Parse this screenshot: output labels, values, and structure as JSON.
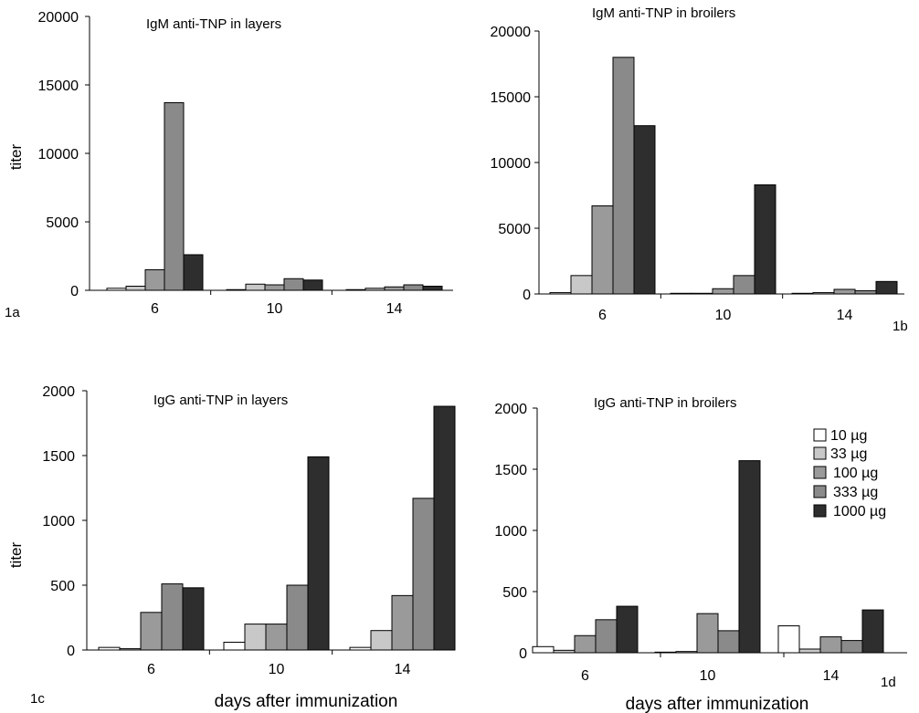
{
  "colors": {
    "10 µg": "#ffffff",
    "33 µg": "#c8c8c8",
    "100 µg": "#9a9a9a",
    "333 µg": "#8a8a8a",
    "1000 µg": "#2e2e2e"
  },
  "chart_data": [
    {
      "type": "bar",
      "panel_label": "1a",
      "title": "IgM anti-TNP in layers",
      "ylabel": "titer",
      "xlabel": "",
      "categories": [
        "6",
        "10",
        "14"
      ],
      "ylim": [
        0,
        20000
      ],
      "yticks": [
        "0",
        "5000",
        "10000",
        "15000",
        "20000"
      ],
      "series": [
        {
          "name": "10 µg",
          "values": [
            150,
            50,
            50
          ]
        },
        {
          "name": "33 µg",
          "values": [
            300,
            450,
            150
          ]
        },
        {
          "name": "100 µg",
          "values": [
            1500,
            400,
            250
          ]
        },
        {
          "name": "333 µg",
          "values": [
            13700,
            850,
            400
          ]
        },
        {
          "name": "1000 µg",
          "values": [
            2600,
            750,
            300
          ]
        }
      ]
    },
    {
      "type": "bar",
      "panel_label": "1b",
      "title": "IgM anti-TNP in broilers",
      "ylabel": "",
      "xlabel": "",
      "categories": [
        "6",
        "10",
        "14"
      ],
      "ylim": [
        0,
        20000
      ],
      "yticks": [
        "0",
        "5000",
        "10000",
        "15000",
        "20000"
      ],
      "series": [
        {
          "name": "10 µg",
          "values": [
            100,
            50,
            50
          ]
        },
        {
          "name": "33 µg",
          "values": [
            1400,
            50,
            100
          ]
        },
        {
          "name": "100 µg",
          "values": [
            6700,
            400,
            350
          ]
        },
        {
          "name": "333 µg",
          "values": [
            18000,
            1400,
            250
          ]
        },
        {
          "name": "1000 µg",
          "values": [
            12800,
            8300,
            950
          ]
        }
      ]
    },
    {
      "type": "bar",
      "panel_label": "1c",
      "title": "IgG anti-TNP in layers",
      "ylabel": "titer",
      "xlabel": "days after immunization",
      "categories": [
        "6",
        "10",
        "14"
      ],
      "ylim": [
        0,
        2000
      ],
      "yticks": [
        "0",
        "500",
        "1000",
        "1500",
        "2000"
      ],
      "series": [
        {
          "name": "10 µg",
          "values": [
            20,
            60,
            20
          ]
        },
        {
          "name": "33 µg",
          "values": [
            10,
            200,
            150
          ]
        },
        {
          "name": "100 µg",
          "values": [
            290,
            200,
            420
          ]
        },
        {
          "name": "333 µg",
          "values": [
            510,
            500,
            1170
          ]
        },
        {
          "name": "1000 µg",
          "values": [
            480,
            1490,
            1880
          ]
        }
      ]
    },
    {
      "type": "bar",
      "panel_label": "1d",
      "title": "IgG anti-TNP in broilers",
      "ylabel": "",
      "xlabel": "days after  immunization",
      "categories": [
        "6",
        "10",
        "14"
      ],
      "ylim": [
        0,
        2000
      ],
      "yticks": [
        "0",
        "500",
        "1000",
        "1500",
        "2000"
      ],
      "legend": [
        "10 µg",
        "33 µg",
        "100 µg",
        "333 µg",
        "1000 µg"
      ],
      "series": [
        {
          "name": "10 µg",
          "values": [
            50,
            5,
            220
          ]
        },
        {
          "name": "33 µg",
          "values": [
            20,
            10,
            30
          ]
        },
        {
          "name": "100 µg",
          "values": [
            140,
            320,
            130
          ]
        },
        {
          "name": "333 µg",
          "values": [
            270,
            180,
            100
          ]
        },
        {
          "name": "1000 µg",
          "values": [
            380,
            1570,
            350
          ]
        }
      ]
    }
  ]
}
